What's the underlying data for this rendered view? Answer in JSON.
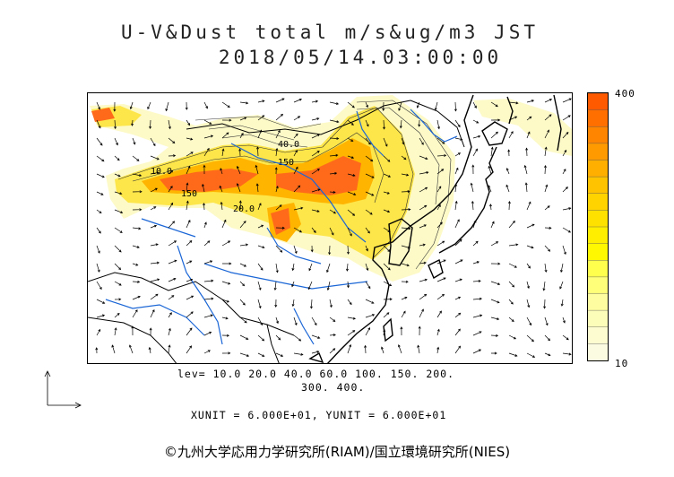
{
  "header": {
    "title": "U-V&Dust total m/s&ug/m3 JST",
    "datetime": "2018/05/14.03:00:00"
  },
  "colorbar": {
    "max_label": "400",
    "min_label": "10",
    "colors": [
      "#ff5a00",
      "#ff6f00",
      "#ff8500",
      "#ff9a00",
      "#ffaf00",
      "#ffc300",
      "#ffd300",
      "#ffe100",
      "#ffee00",
      "#fff800",
      "#ffff4d",
      "#ffff7a",
      "#fefea0",
      "#fdfdba",
      "#fcfcd0",
      "#fbfbe2"
    ]
  },
  "map": {
    "contour_labels": [
      "40.0",
      "150",
      "10.0",
      "150",
      "20.0"
    ],
    "colors": {
      "dust_low": "#fdfac8",
      "dust_mid": "#fde64a",
      "dust_high": "#ffb400",
      "dust_peak": "#ff6a1a",
      "river": "#1b66d6",
      "coast": "#000000"
    }
  },
  "levels": {
    "line1": "lev= 10.0 20.0 40.0 60.0 100. 150. 200.",
    "line2": "300. 400."
  },
  "units": "XUNIT = 6.000E+01, YUNIT = 6.000E+01",
  "credit": "©九州大学応用力学研究所(RIAM)/国立環境研究所(NIES)"
}
